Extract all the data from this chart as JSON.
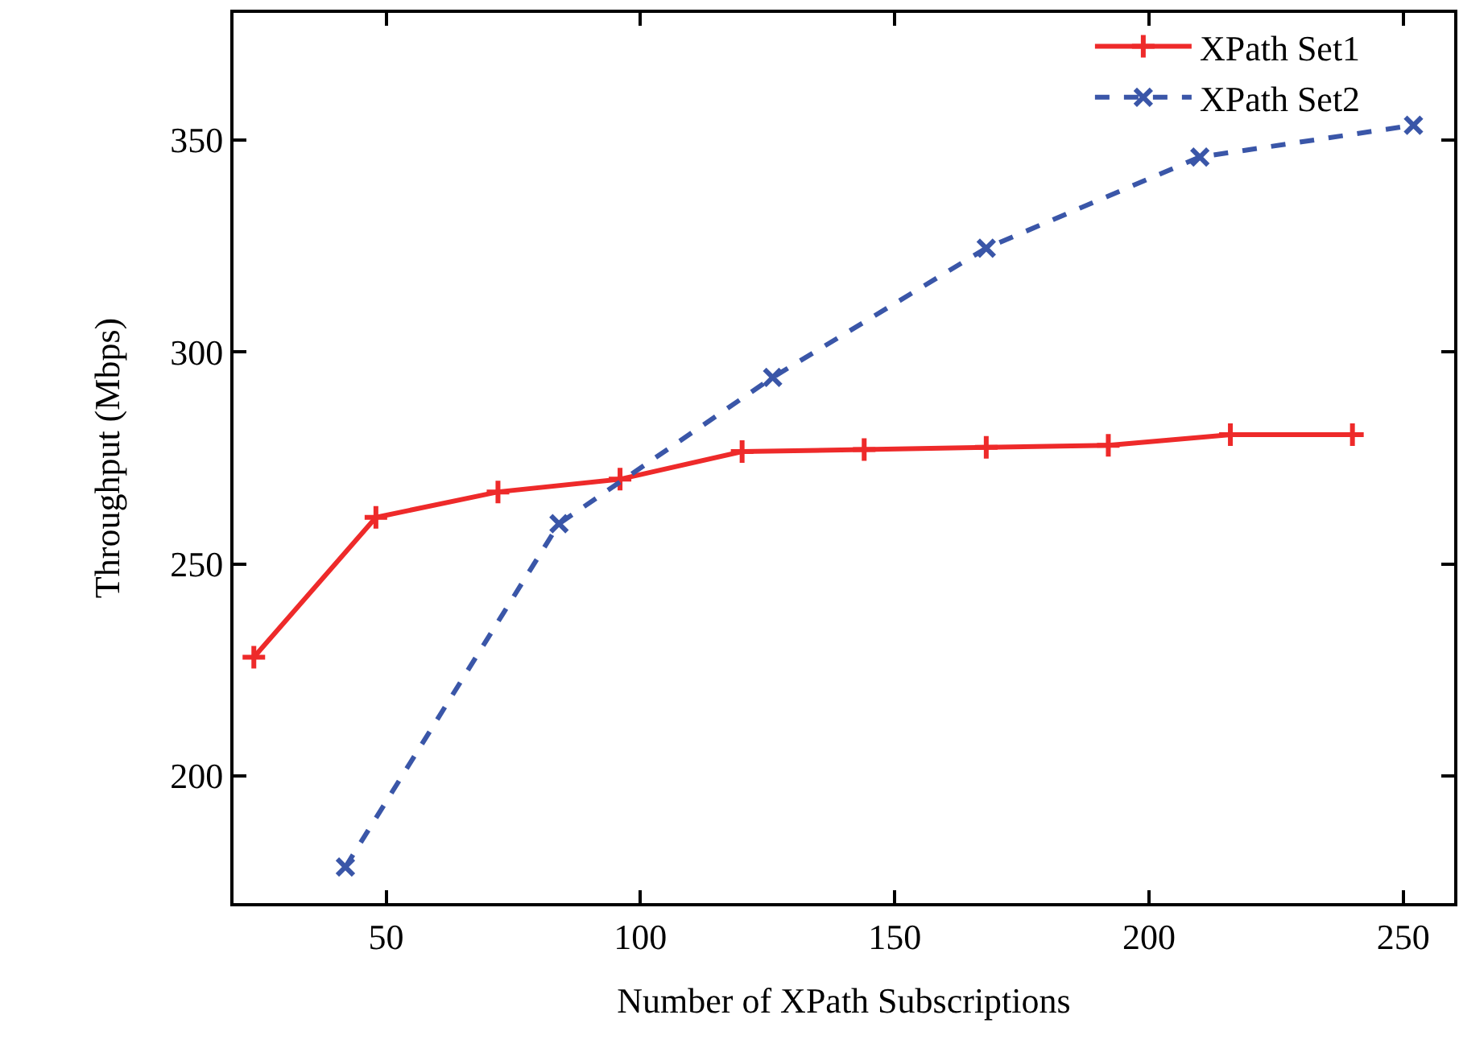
{
  "chart_data": {
    "type": "line",
    "xlabel": "Number of XPath Subscriptions",
    "ylabel": "Throughput (Mbps)",
    "xlim": [
      20,
      260
    ],
    "xticks": [
      50,
      100,
      150,
      200,
      250
    ],
    "ylim": [
      170,
      380
    ],
    "yticks": [
      200,
      250,
      300,
      350
    ],
    "legend": "top right",
    "series": [
      {
        "name": "XPath Set1",
        "color": "#ee2a2a",
        "marker": "cross",
        "line_style": "solid",
        "x": [
          24,
          48,
          72,
          96,
          120,
          144,
          168,
          192,
          216,
          240
        ],
        "values": [
          228,
          261,
          267,
          270,
          276.5,
          277,
          277.5,
          278,
          280.5,
          280.5
        ]
      },
      {
        "name": "XPath Set2",
        "color": "#3a56a8",
        "marker": "x",
        "line_style": "dashed",
        "x": [
          42,
          84,
          126,
          168,
          210,
          252
        ],
        "values": [
          178.5,
          259.5,
          294,
          324.5,
          346,
          353.5
        ]
      }
    ]
  }
}
